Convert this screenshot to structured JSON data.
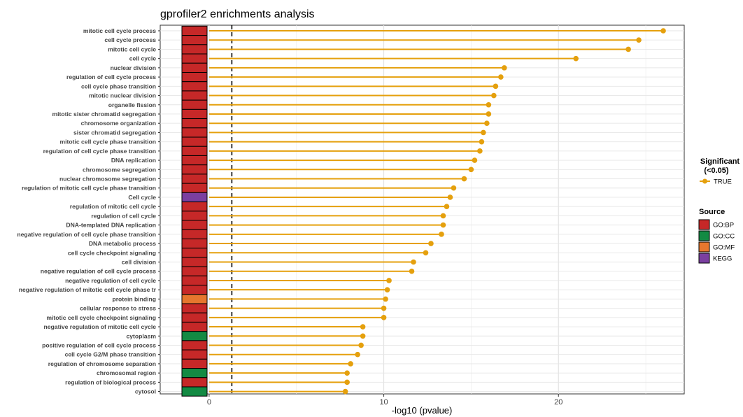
{
  "chart_data": {
    "type": "lollipop",
    "title": "gprofiler2 enrichments analysis",
    "xlabel": "-log10 (pvalue)",
    "ylabel": "",
    "xlim": [
      -2.8,
      27.2
    ],
    "xticks": [
      0,
      10,
      20
    ],
    "threshold_line": 1.301,
    "grid": true,
    "lollipop_color": "#E5A00D",
    "legend_position": "right",
    "legend_significant": {
      "title_line1": "Significant",
      "title_line2": "(<0.05)",
      "items": [
        {
          "label": "TRUE",
          "color": "#E5A00D"
        }
      ]
    },
    "legend_source": {
      "title": "Source",
      "items": [
        {
          "label": "GO:BP",
          "color": "#C62828"
        },
        {
          "label": "GO:CC",
          "color": "#138A43"
        },
        {
          "label": "GO:MF",
          "color": "#E6772E"
        },
        {
          "label": "KEGG",
          "color": "#7B3FA0"
        }
      ]
    },
    "terms": [
      {
        "term": "mitotic cell cycle process",
        "value": 26.0,
        "source": "GO:BP"
      },
      {
        "term": "cell cycle process",
        "value": 24.6,
        "source": "GO:BP"
      },
      {
        "term": "mitotic cell cycle",
        "value": 24.0,
        "source": "GO:BP"
      },
      {
        "term": "cell cycle",
        "value": 21.0,
        "source": "GO:BP"
      },
      {
        "term": "nuclear division",
        "value": 16.9,
        "source": "GO:BP"
      },
      {
        "term": "regulation of cell cycle process",
        "value": 16.7,
        "source": "GO:BP"
      },
      {
        "term": "cell cycle phase transition",
        "value": 16.4,
        "source": "GO:BP"
      },
      {
        "term": "mitotic nuclear division",
        "value": 16.3,
        "source": "GO:BP"
      },
      {
        "term": "organelle fission",
        "value": 16.0,
        "source": "GO:BP"
      },
      {
        "term": "mitotic sister chromatid segregation",
        "value": 16.0,
        "source": "GO:BP"
      },
      {
        "term": "chromosome organization",
        "value": 15.9,
        "source": "GO:BP"
      },
      {
        "term": "sister chromatid segregation",
        "value": 15.7,
        "source": "GO:BP"
      },
      {
        "term": "mitotic cell cycle phase transition",
        "value": 15.6,
        "source": "GO:BP"
      },
      {
        "term": "regulation of cell cycle phase transition",
        "value": 15.5,
        "source": "GO:BP"
      },
      {
        "term": "DNA replication",
        "value": 15.2,
        "source": "GO:BP"
      },
      {
        "term": "chromosome segregation",
        "value": 15.0,
        "source": "GO:BP"
      },
      {
        "term": "nuclear chromosome segregation",
        "value": 14.6,
        "source": "GO:BP"
      },
      {
        "term": "regulation of mitotic cell cycle phase transition",
        "value": 14.0,
        "source": "GO:BP"
      },
      {
        "term": "Cell cycle",
        "value": 13.8,
        "source": "KEGG"
      },
      {
        "term": "regulation of mitotic cell cycle",
        "value": 13.6,
        "source": "GO:BP"
      },
      {
        "term": "regulation of cell cycle",
        "value": 13.4,
        "source": "GO:BP"
      },
      {
        "term": "DNA-templated DNA replication",
        "value": 13.4,
        "source": "GO:BP"
      },
      {
        "term": "negative regulation of cell cycle phase transition",
        "value": 13.3,
        "source": "GO:BP"
      },
      {
        "term": "DNA metabolic process",
        "value": 12.7,
        "source": "GO:BP"
      },
      {
        "term": "cell cycle checkpoint signaling",
        "value": 12.4,
        "source": "GO:BP"
      },
      {
        "term": "cell division",
        "value": 11.7,
        "source": "GO:BP"
      },
      {
        "term": "negative regulation of cell cycle process",
        "value": 11.6,
        "source": "GO:BP"
      },
      {
        "term": "negative regulation of cell cycle",
        "value": 10.3,
        "source": "GO:BP"
      },
      {
        "term": "negative regulation of mitotic cell cycle phase tr",
        "value": 10.2,
        "source": "GO:BP"
      },
      {
        "term": "protein binding",
        "value": 10.1,
        "source": "GO:MF"
      },
      {
        "term": "cellular response to stress",
        "value": 10.0,
        "source": "GO:BP"
      },
      {
        "term": "mitotic cell cycle checkpoint signaling",
        "value": 10.0,
        "source": "GO:BP"
      },
      {
        "term": "negative regulation of mitotic cell cycle",
        "value": 8.8,
        "source": "GO:BP"
      },
      {
        "term": "cytoplasm",
        "value": 8.8,
        "source": "GO:CC"
      },
      {
        "term": "positive regulation of cell cycle process",
        "value": 8.7,
        "source": "GO:BP"
      },
      {
        "term": "cell cycle G2/M phase transition",
        "value": 8.5,
        "source": "GO:BP"
      },
      {
        "term": "regulation of chromosome separation",
        "value": 8.1,
        "source": "GO:BP"
      },
      {
        "term": "chromosomal region",
        "value": 7.9,
        "source": "GO:CC"
      },
      {
        "term": "regulation of biological process",
        "value": 7.9,
        "source": "GO:BP"
      },
      {
        "term": "cytosol",
        "value": 7.8,
        "source": "GO:CC"
      }
    ]
  }
}
